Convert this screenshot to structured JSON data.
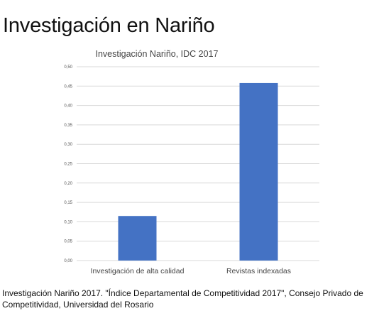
{
  "slide": {
    "title": "Investigación en Nariño",
    "caption": "Investigación Nariño 2017. \"Índice Departamental de Competitividad 2017\", Consejo Privado de Competitividad, Universidad del Rosario"
  },
  "chart_data": {
    "type": "bar",
    "title": "Investigación Nariño, IDC  2017",
    "categories": [
      "Investigación de alta calidad",
      "Revistas indexadas"
    ],
    "values": [
      0.115,
      0.458
    ],
    "ylim": [
      0,
      0.5
    ],
    "yticks": [
      "0,00",
      "0,05",
      "0,10",
      "0,15",
      "0,20",
      "0,25",
      "0,30",
      "0,35",
      "0,40",
      "0,45",
      "0,50"
    ],
    "grid": true,
    "bar_color": "#4472c4",
    "grid_color": "#d9d9d9",
    "xlabel": "",
    "ylabel": ""
  }
}
